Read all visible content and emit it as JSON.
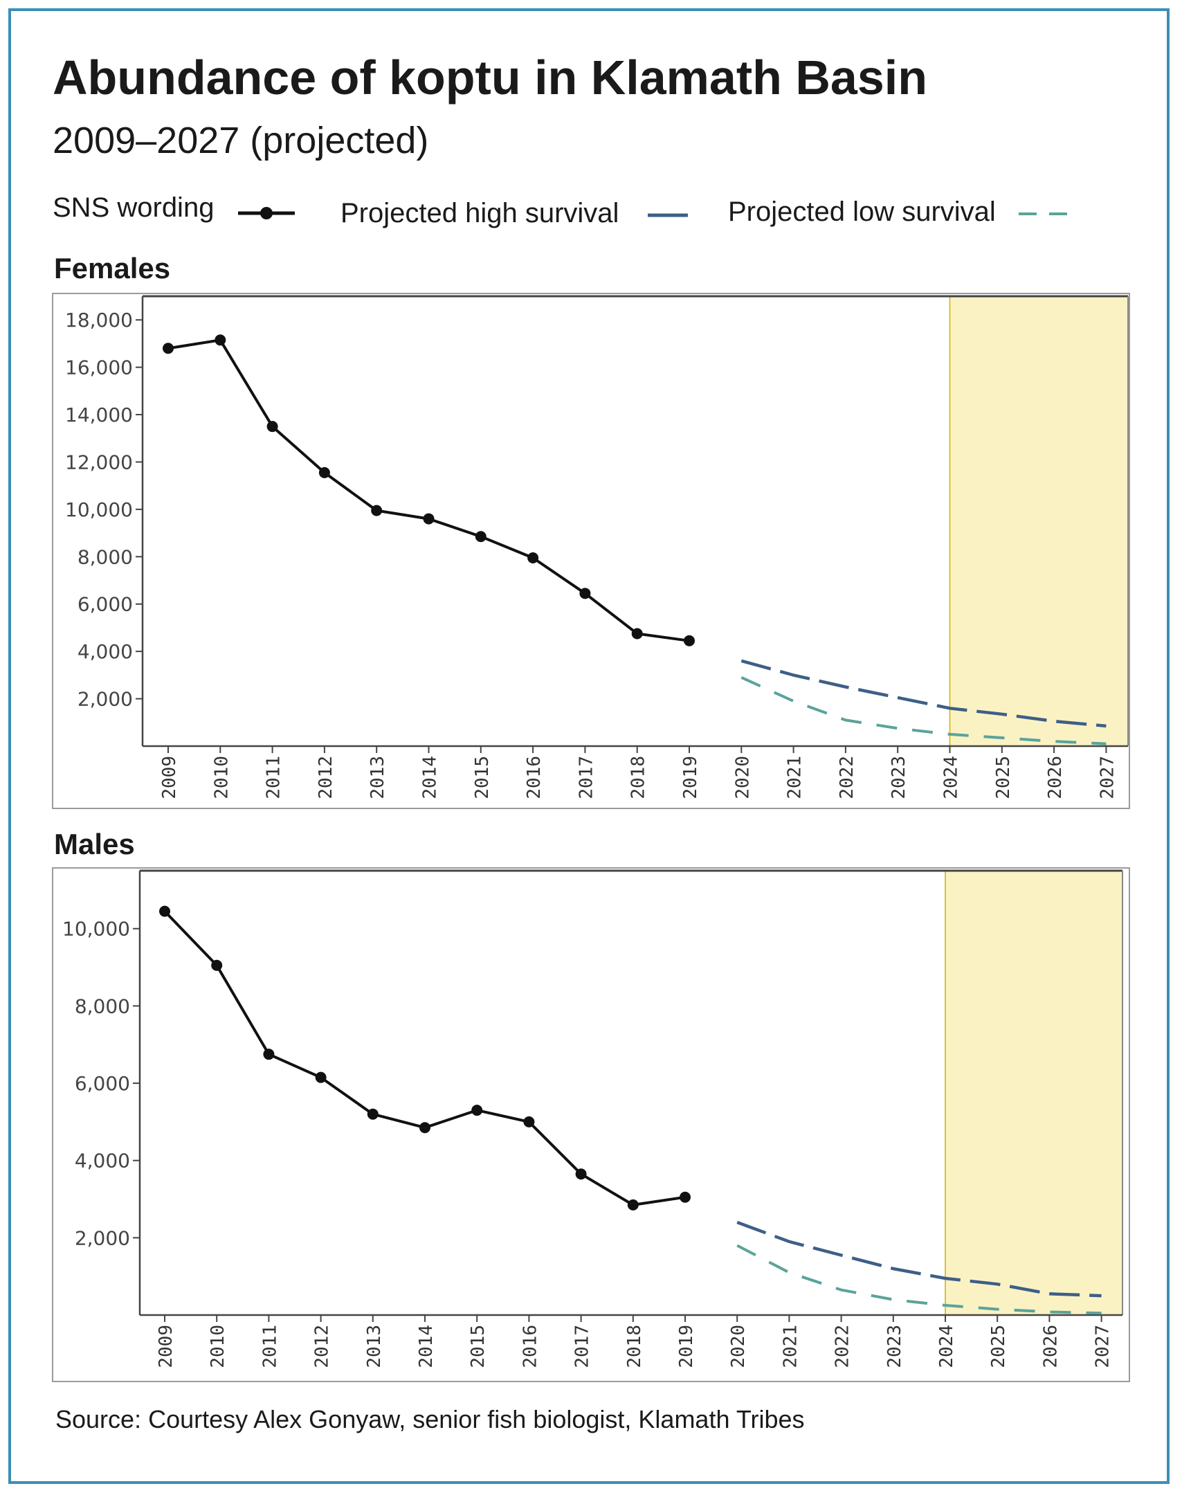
{
  "title": "Abundance of koptu in Klamath Basin",
  "subtitle": "2009–2027 (projected)",
  "legend": {
    "sns": "SNS wording",
    "high": "Projected high survival",
    "low": "Projected low survival"
  },
  "colors": {
    "observed": "#111111",
    "high": "#3d5f87",
    "low": "#5aa39a",
    "shade": "#fbf2c4",
    "shade_line": "#d8c23a",
    "frame": "#3b8fb5"
  },
  "source": "Source: Courtesy Alex Gonyaw, senior fish biologist, Klamath Tribes",
  "chart_data": [
    {
      "type": "line",
      "panel_label": "Females",
      "x": [
        2009,
        2010,
        2011,
        2012,
        2013,
        2014,
        2015,
        2016,
        2017,
        2018,
        2019,
        2020,
        2021,
        2022,
        2023,
        2024,
        2025,
        2026,
        2027
      ],
      "x_tick_labels": [
        "2009",
        "2010",
        "2011",
        "2012",
        "2013",
        "2014",
        "2015",
        "2016",
        "2017",
        "2018",
        "2019",
        "2020",
        "2021",
        "2022",
        "2023",
        "2024",
        "2025",
        "2026",
        "2027"
      ],
      "y_tick_labels": [
        "2,000",
        "4,000",
        "6,000",
        "8,000",
        "10,000",
        "12,000",
        "14,000",
        "16,000",
        "18,000"
      ],
      "y_ticks": [
        2000,
        4000,
        6000,
        8000,
        10000,
        12000,
        14000,
        16000,
        18000
      ],
      "ylim": [
        0,
        19000
      ],
      "shaded_from": 2024,
      "series": [
        {
          "name": "SNS wording",
          "x": [
            2009,
            2010,
            2011,
            2012,
            2013,
            2014,
            2015,
            2016,
            2017,
            2018,
            2019
          ],
          "values": [
            16800,
            17150,
            13500,
            11550,
            9950,
            9600,
            8850,
            7950,
            6450,
            4750,
            4450
          ]
        },
        {
          "name": "Projected high survival",
          "x": [
            2020,
            2021,
            2022,
            2023,
            2024,
            2025,
            2026,
            2027
          ],
          "values": [
            3600,
            3000,
            2500,
            2050,
            1600,
            1350,
            1050,
            850
          ]
        },
        {
          "name": "Projected low survival",
          "x": [
            2020,
            2021,
            2022,
            2023,
            2024,
            2025,
            2026,
            2027
          ],
          "values": [
            2900,
            1900,
            1100,
            750,
            500,
            350,
            200,
            100
          ]
        }
      ]
    },
    {
      "type": "line",
      "panel_label": "Males",
      "x": [
        2009,
        2010,
        2011,
        2012,
        2013,
        2014,
        2015,
        2016,
        2017,
        2018,
        2019,
        2020,
        2021,
        2022,
        2023,
        2024,
        2025,
        2026,
        2027
      ],
      "x_tick_labels": [
        "2009",
        "2010",
        "2011",
        "2012",
        "2013",
        "2014",
        "2015",
        "2016",
        "2017",
        "2018",
        "2019",
        "2020",
        "2021",
        "2022",
        "2023",
        "2024",
        "2025",
        "2026",
        "2027"
      ],
      "y_tick_labels": [
        "2,000",
        "4,000",
        "6,000",
        "8,000",
        "10,000"
      ],
      "y_ticks": [
        2000,
        4000,
        6000,
        8000,
        10000
      ],
      "ylim": [
        0,
        11500
      ],
      "shaded_from": 2024,
      "series": [
        {
          "name": "SNS wording",
          "x": [
            2009,
            2010,
            2011,
            2012,
            2013,
            2014,
            2015,
            2016,
            2017,
            2018,
            2019
          ],
          "values": [
            10450,
            9050,
            6750,
            6150,
            5200,
            4850,
            5300,
            5000,
            3650,
            2850,
            3050
          ]
        },
        {
          "name": "Projected high survival",
          "x": [
            2020,
            2021,
            2022,
            2023,
            2024,
            2025,
            2026,
            2027
          ],
          "values": [
            2400,
            1900,
            1550,
            1200,
            950,
            800,
            550,
            500
          ]
        },
        {
          "name": "Projected low survival",
          "x": [
            2020,
            2021,
            2022,
            2023,
            2024,
            2025,
            2026,
            2027
          ],
          "values": [
            1800,
            1100,
            650,
            400,
            250,
            150,
            80,
            50
          ]
        }
      ]
    }
  ]
}
